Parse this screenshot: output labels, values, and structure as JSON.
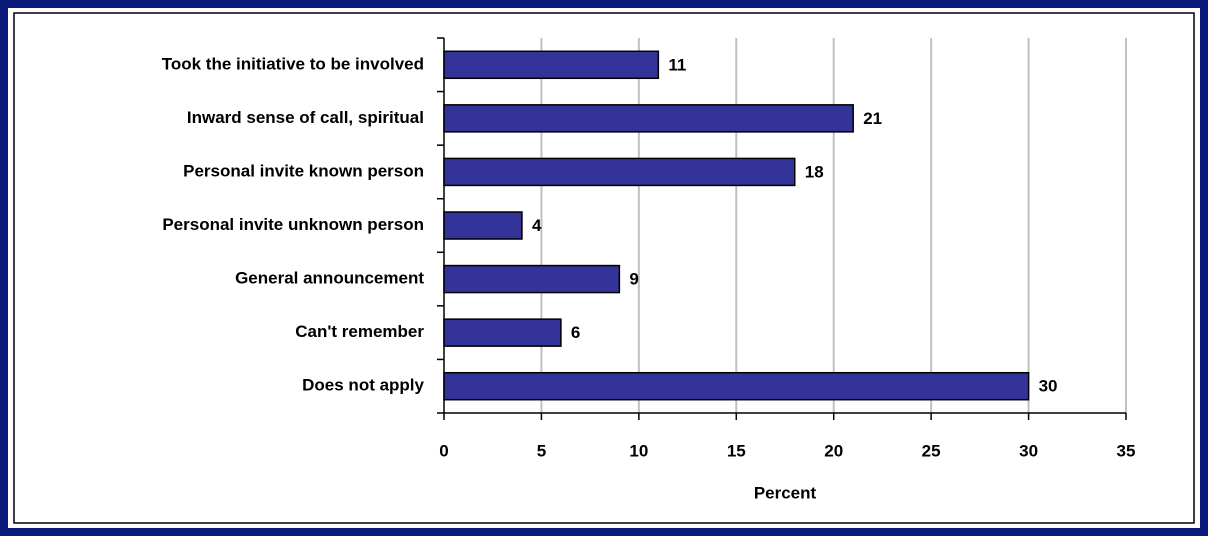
{
  "chart_data": {
    "type": "bar",
    "orientation": "horizontal",
    "categories": [
      "Took the initiative to be involved",
      "Inward sense of call, spiritual",
      "Personal invite known person",
      "Personal invite unknown person",
      "General announcement",
      "Can't remember",
      "Does not apply"
    ],
    "values": [
      11,
      21,
      18,
      4,
      9,
      6,
      30
    ],
    "color": "#333399",
    "xlabel": "Percent",
    "xlim": [
      0,
      35
    ],
    "xticks": [
      0,
      5,
      10,
      15,
      20,
      25,
      30,
      35
    ],
    "grid": true
  }
}
